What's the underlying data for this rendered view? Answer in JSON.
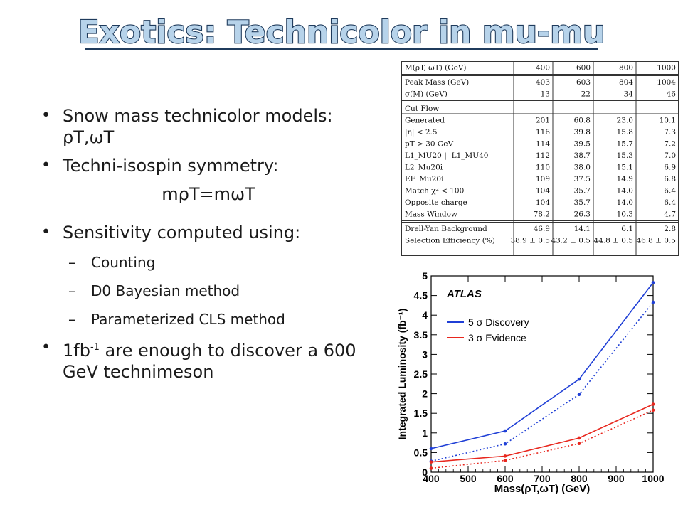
{
  "slide": {
    "title": "Exotics: Technicolor in mu-mu"
  },
  "bullets": {
    "b1": "Snow mass technicolor models: ",
    "b1_sym": "ρT,ωT",
    "b2": "Techni-isospin symmetry:",
    "b2_eq": "mρT=mωT",
    "b3": "Sensitivity computed using:",
    "sub1": "Counting",
    "sub2": "D0 Bayesian method",
    "sub3": "Parameterized CLS method",
    "b4_pre": "1fb",
    "b4_sup": "-1",
    "b4_post": " are enough to discover a 600 GeV technimeson"
  },
  "table": {
    "header": [
      "M(ρT, ωT) (GeV)",
      "400",
      "600",
      "800",
      "1000"
    ],
    "peak_rows": [
      [
        "Peak Mass (GeV)",
        "403",
        "603",
        "804",
        "1004"
      ],
      [
        "σ(M) (GeV)",
        "13",
        "22",
        "34",
        "46"
      ]
    ],
    "cutflow_label": "Cut Flow",
    "cutflow_rows": [
      [
        "Generated",
        "201",
        "60.8",
        "23.0",
        "10.1"
      ],
      [
        "|η| < 2.5",
        "116",
        "39.8",
        "15.8",
        "7.3"
      ],
      [
        "pT > 30 GeV",
        "114",
        "39.5",
        "15.7",
        "7.2"
      ],
      [
        "L1_MU20 || L1_MU40",
        "112",
        "38.7",
        "15.3",
        "7.0"
      ],
      [
        "L2_Mu20i",
        "110",
        "38.0",
        "15.1",
        "6.9"
      ],
      [
        "EF_Mu20i",
        "109",
        "37.5",
        "14.9",
        "6.8"
      ],
      [
        "Match χ² < 100",
        "104",
        "35.7",
        "14.0",
        "6.4"
      ],
      [
        "Opposite charge",
        "104",
        "35.7",
        "14.0",
        "6.4"
      ],
      [
        "Mass Window",
        "78.2",
        "26.3",
        "10.3",
        "4.7"
      ]
    ],
    "bottom_rows": [
      [
        "Drell-Yan Background",
        "46.9",
        "14.1",
        "6.1",
        "2.8"
      ],
      [
        "Selection Efficiency (%)",
        "38.9 ± 0.5",
        "43.2 ± 0.5",
        "44.8 ± 0.5",
        "46.8 ± 0.5"
      ]
    ]
  },
  "chart_data": {
    "type": "line",
    "annotation": "ATLAS",
    "xlabel": "Mass(ρT,ωT) (GeV)",
    "ylabel": "Integrated Luminosity (fb⁻¹)",
    "xlim": [
      400,
      1000
    ],
    "ylim": [
      0,
      5
    ],
    "xticks": [
      "400",
      "500",
      "600",
      "700",
      "800",
      "900",
      "1000"
    ],
    "yticks": [
      "0",
      "0.5",
      "1",
      "1.5",
      "2",
      "2.5",
      "3",
      "3.5",
      "4",
      "4.5",
      "5"
    ],
    "legend_position": "top-left",
    "legend": [
      {
        "label": "5 σ Discovery",
        "color": "#1f3fd6"
      },
      {
        "label": "3 σ Evidence",
        "color": "#e8271e"
      }
    ],
    "x": [
      400,
      600,
      800,
      1000
    ],
    "series": [
      {
        "color": "#1f3fd6",
        "style": "solid",
        "values": [
          0.6,
          1.05,
          2.37,
          4.83
        ]
      },
      {
        "color": "#1f3fd6",
        "style": "dotted",
        "values": [
          0.28,
          0.72,
          1.98,
          4.33
        ]
      },
      {
        "color": "#e8271e",
        "style": "solid",
        "values": [
          0.26,
          0.41,
          0.87,
          1.73
        ]
      },
      {
        "color": "#e8271e",
        "style": "dotted",
        "values": [
          0.1,
          0.3,
          0.73,
          1.58
        ]
      }
    ]
  }
}
